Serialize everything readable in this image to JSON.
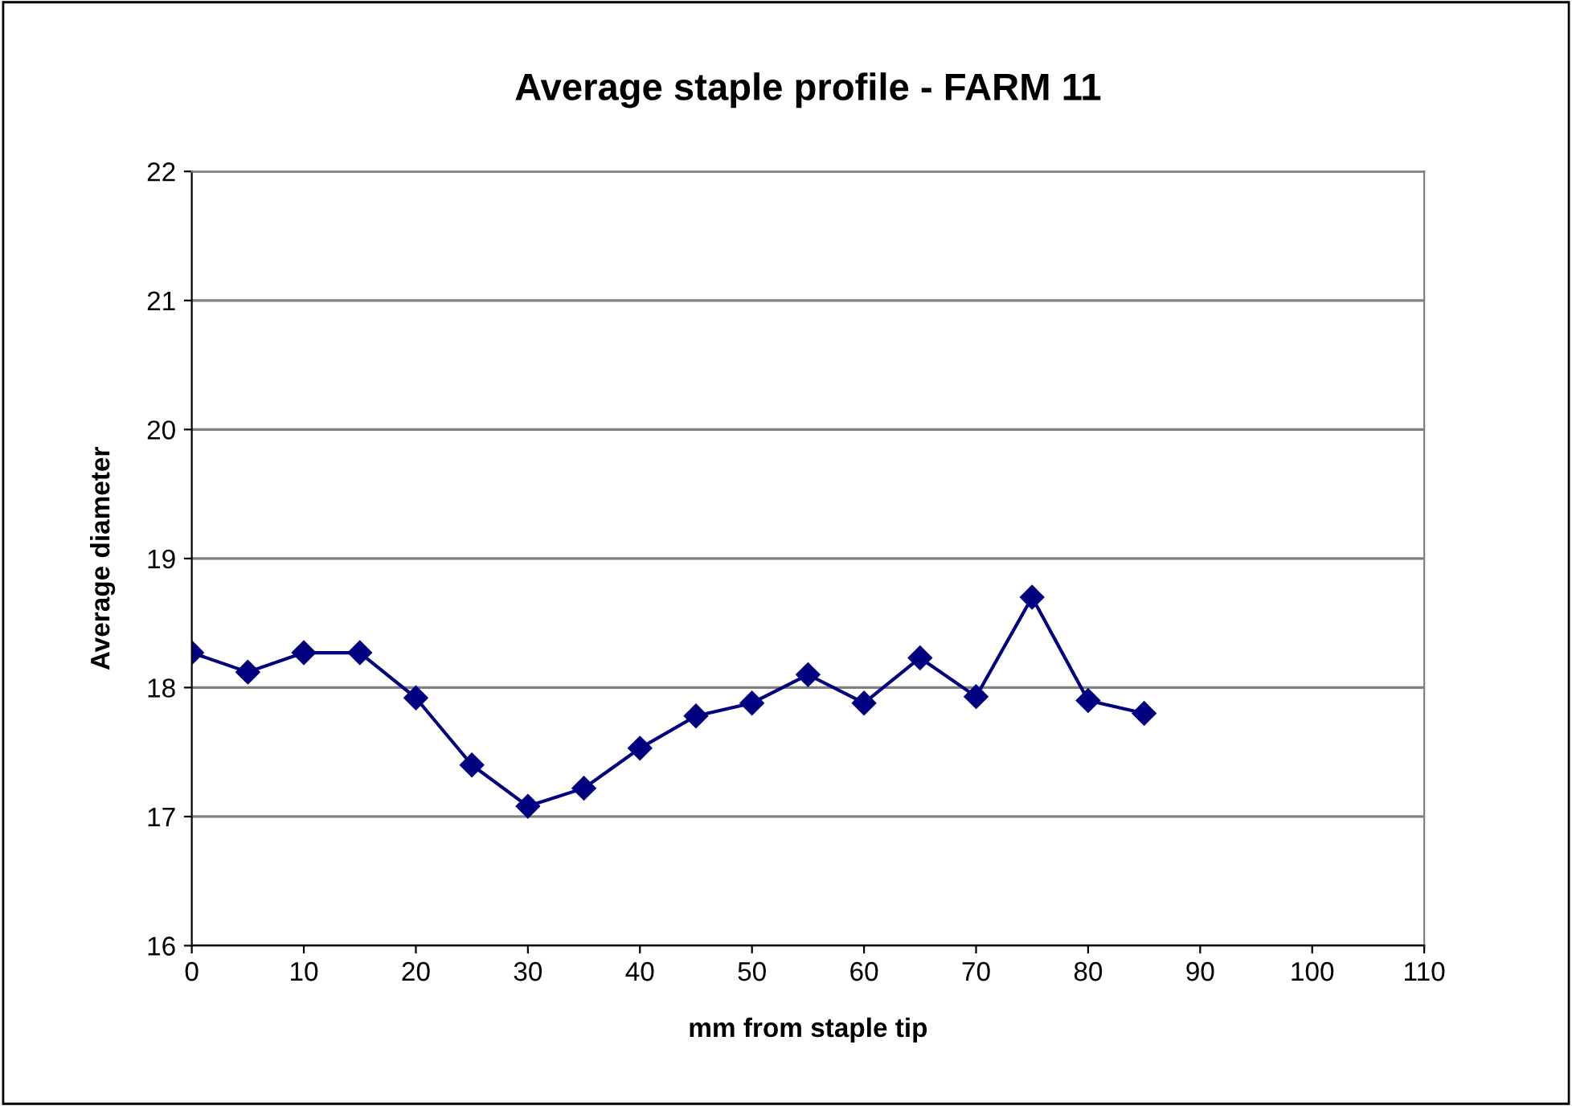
{
  "chart_data": {
    "type": "line",
    "title": "Average staple profile - FARM 11",
    "xlabel": "mm from staple tip",
    "ylabel": "Average diameter",
    "x": [
      0,
      5,
      10,
      15,
      20,
      25,
      30,
      35,
      40,
      45,
      50,
      55,
      60,
      65,
      70,
      75,
      80,
      85
    ],
    "series": [
      {
        "color": "#000080",
        "values": [
          18.27,
          18.12,
          18.27,
          18.27,
          17.92,
          17.4,
          17.08,
          17.22,
          17.53,
          17.78,
          17.88,
          18.1,
          17.88,
          18.23,
          17.93,
          18.7,
          17.9,
          17.8
        ]
      }
    ],
    "xlim": [
      0,
      110
    ],
    "xticks": [
      0,
      10,
      20,
      30,
      40,
      50,
      60,
      70,
      80,
      90,
      100,
      110
    ],
    "ylim": [
      16,
      22
    ],
    "yticks": [
      16,
      17,
      18,
      19,
      20,
      21,
      22
    ],
    "grid": "y",
    "marker": "diamond",
    "line_style": "solid",
    "legend": false
  }
}
